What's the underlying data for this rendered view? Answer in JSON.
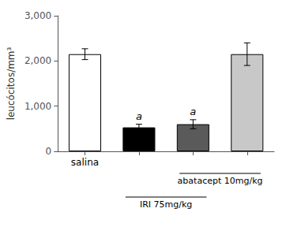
{
  "chart_data": {
    "type": "bar",
    "categories": [
      "salina",
      null,
      null,
      null
    ],
    "values": [
      2150,
      530,
      600,
      2150
    ],
    "errors": [
      120,
      70,
      100,
      250
    ],
    "colors": [
      "#ffffff",
      "#000000",
      "#5a5a5a",
      "#c8c8c8"
    ],
    "ylabel": "leucócitos/mm³",
    "ylim": [
      0,
      3000
    ],
    "yticks": [
      0,
      1000,
      2000,
      3000
    ],
    "grid": false,
    "annotations": [
      {
        "text": "a",
        "bar": 1
      },
      {
        "text": "a",
        "bar": 2
      }
    ],
    "brackets": [
      {
        "text": "abatacept 10mg/kg",
        "bars": [
          2,
          3
        ]
      },
      {
        "text": "IRI 75mg/kg",
        "bars": [
          1,
          2
        ]
      }
    ]
  }
}
